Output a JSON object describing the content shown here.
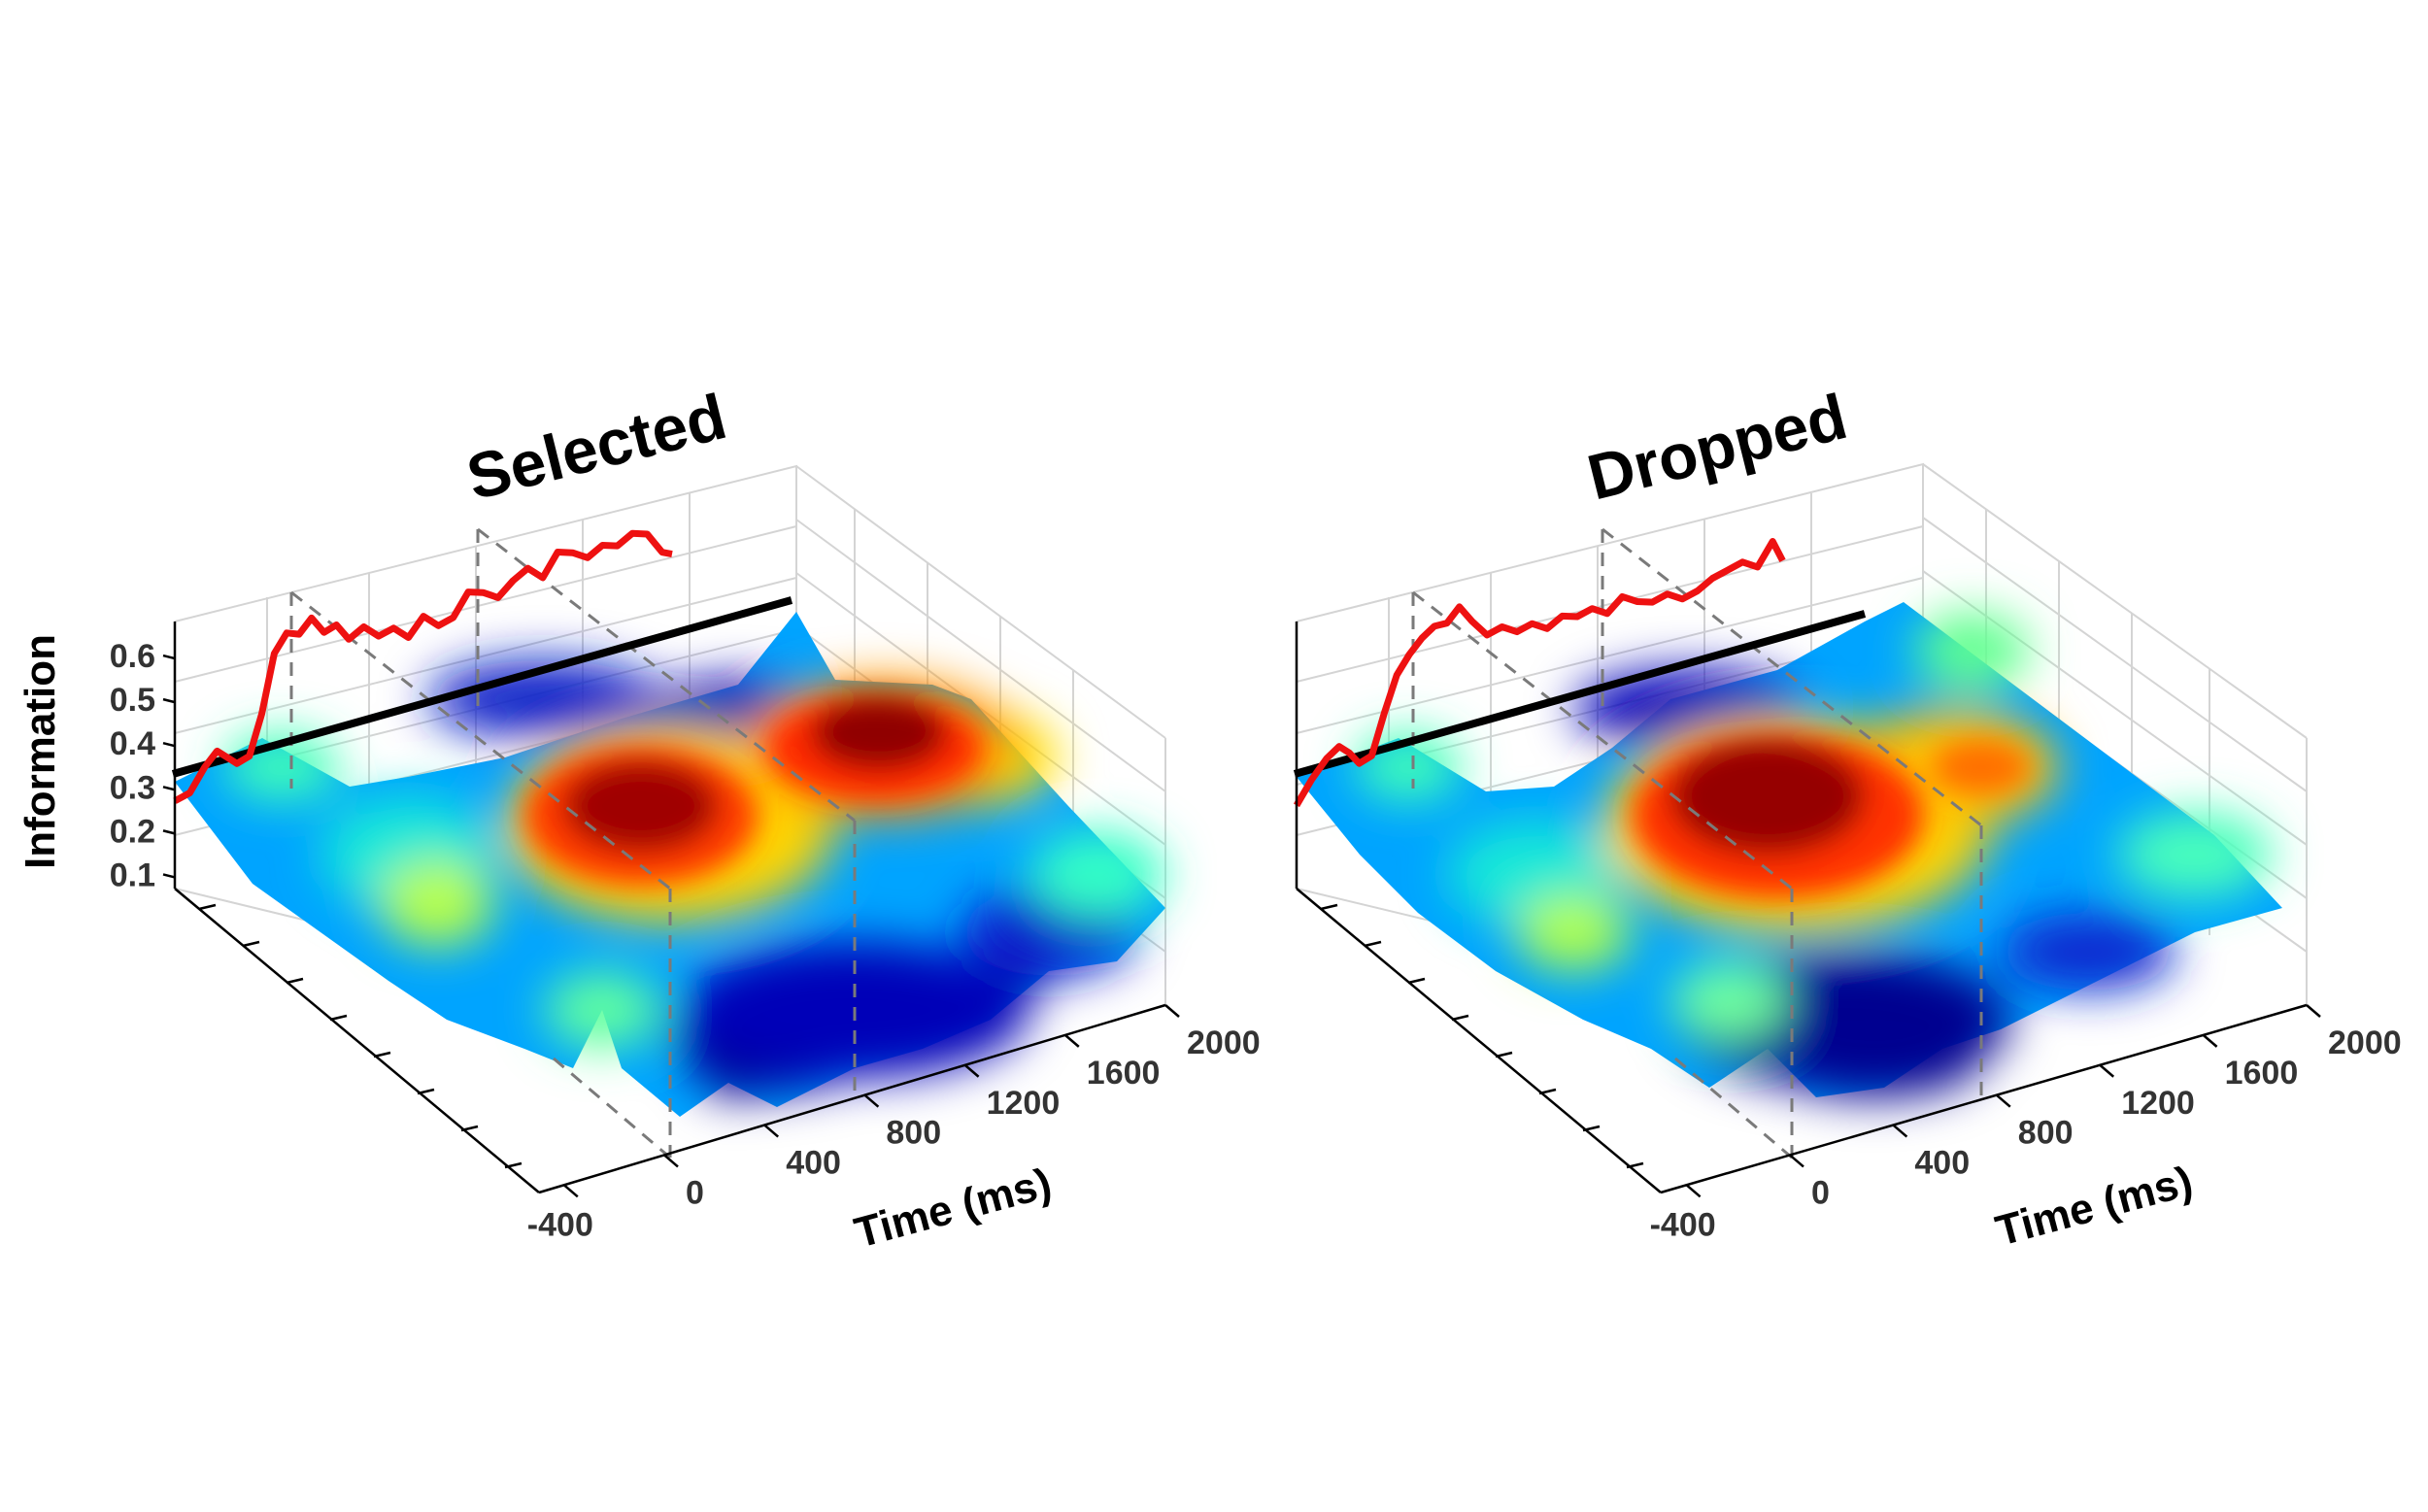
{
  "chart_data": [
    {
      "type": "surface",
      "title": "Selected",
      "zlabel": "Information",
      "xlabel": "Time (ms)",
      "x_ticks": [
        -400,
        0,
        400,
        800,
        1200,
        1600,
        2000
      ],
      "z_ticks": [
        0.1,
        0.2,
        0.3,
        0.4,
        0.5,
        0.6
      ],
      "x_range": [
        -500,
        2000
      ],
      "z_range": [
        0.1,
        0.6
      ],
      "colormap": "jet",
      "threshold": 0.3,
      "event_markers_ms": [
        0,
        800
      ],
      "curve": {
        "color": "#ee1111",
        "x": [
          -500,
          -440,
          -380,
          -330,
          -290,
          -250,
          -200,
          -150,
          -100,
          -50,
          0,
          50,
          100,
          150,
          200,
          260,
          320,
          380,
          440,
          500,
          560,
          620,
          680,
          740,
          800,
          860,
          920,
          980,
          1040,
          1100,
          1160,
          1220,
          1280,
          1340,
          1400,
          1460,
          1500
        ],
        "y": [
          0.25,
          0.26,
          0.31,
          0.34,
          0.32,
          0.3,
          0.31,
          0.4,
          0.53,
          0.57,
          0.56,
          0.59,
          0.55,
          0.56,
          0.52,
          0.54,
          0.51,
          0.52,
          0.49,
          0.53,
          0.5,
          0.51,
          0.56,
          0.55,
          0.53,
          0.56,
          0.58,
          0.55,
          0.6,
          0.59,
          0.57,
          0.59,
          0.58,
          0.6,
          0.59,
          0.54,
          0.53
        ]
      }
    },
    {
      "type": "surface",
      "title": "Dropped",
      "zlabel": "",
      "xlabel": "Time (ms)",
      "x_ticks": [
        -400,
        0,
        400,
        800,
        1200,
        1600,
        2000
      ],
      "z_ticks": [],
      "x_range": [
        -500,
        2000
      ],
      "z_range": [
        0.1,
        0.6
      ],
      "colormap": "jet",
      "threshold": 0.3,
      "event_markers_ms": [
        0,
        800
      ],
      "curve": {
        "color": "#ee1111",
        "x": [
          -500,
          -440,
          -380,
          -330,
          -290,
          -250,
          -200,
          -150,
          -100,
          -50,
          0,
          50,
          100,
          150,
          200,
          260,
          320,
          380,
          440,
          500,
          560,
          620,
          680,
          740,
          800,
          860,
          920,
          980,
          1040,
          1100,
          1160,
          1220,
          1280,
          1340,
          1400,
          1440
        ],
        "y": [
          0.24,
          0.29,
          0.33,
          0.35,
          0.33,
          0.3,
          0.31,
          0.4,
          0.48,
          0.52,
          0.55,
          0.57,
          0.57,
          0.6,
          0.56,
          0.52,
          0.53,
          0.51,
          0.52,
          0.5,
          0.52,
          0.51,
          0.52,
          0.5,
          0.53,
          0.51,
          0.5,
          0.51,
          0.49,
          0.5,
          0.52,
          0.53,
          0.54,
          0.52,
          0.57,
          0.52
        ]
      }
    }
  ]
}
